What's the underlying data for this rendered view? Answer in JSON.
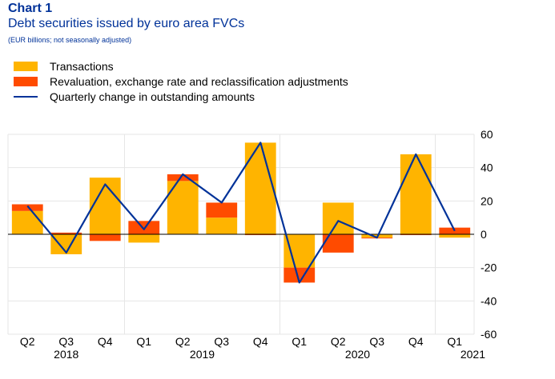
{
  "header": {
    "label": "Chart 1",
    "title": "Debt securities issued by euro area FVCs",
    "subtitle": "(EUR billions; not seasonally adjusted)"
  },
  "chart_data": {
    "type": "bar",
    "stacked": true,
    "categories": [
      "Q2",
      "Q3",
      "Q4",
      "Q1",
      "Q2",
      "Q3",
      "Q4",
      "Q1",
      "Q2",
      "Q3",
      "Q4",
      "Q1"
    ],
    "year_labels": [
      {
        "label": "2018",
        "span": [
          0,
          2
        ]
      },
      {
        "label": "2019",
        "span": [
          3,
          6
        ]
      },
      {
        "label": "2020",
        "span": [
          7,
          10
        ]
      },
      {
        "label": "2021",
        "span": [
          11,
          11
        ]
      }
    ],
    "series": [
      {
        "name": "Transactions",
        "type": "bar",
        "color": "#FFB400",
        "values": [
          14,
          -12,
          34,
          -5,
          32,
          10,
          55,
          -20,
          19,
          -2,
          48,
          -2
        ]
      },
      {
        "name": "Revaluation, exchange rate and reclassification adjustments",
        "type": "bar",
        "color": "#FF4B00",
        "values": [
          4,
          1,
          -4,
          8,
          4,
          9,
          -0.5,
          -9,
          -11,
          -0.5,
          -0.5,
          4
        ]
      },
      {
        "name": "Quarterly change in outstanding amounts",
        "type": "line",
        "color": "#003299",
        "values": [
          17,
          -11,
          30,
          3,
          36,
          19,
          55,
          -29,
          8,
          -2,
          48,
          2
        ]
      }
    ],
    "ylim": [
      -60,
      60
    ],
    "yticks": [
      60,
      40,
      20,
      0,
      -20,
      -40,
      -60
    ],
    "y_axis_position": "right",
    "grid": true,
    "legend_position": "top-left"
  }
}
